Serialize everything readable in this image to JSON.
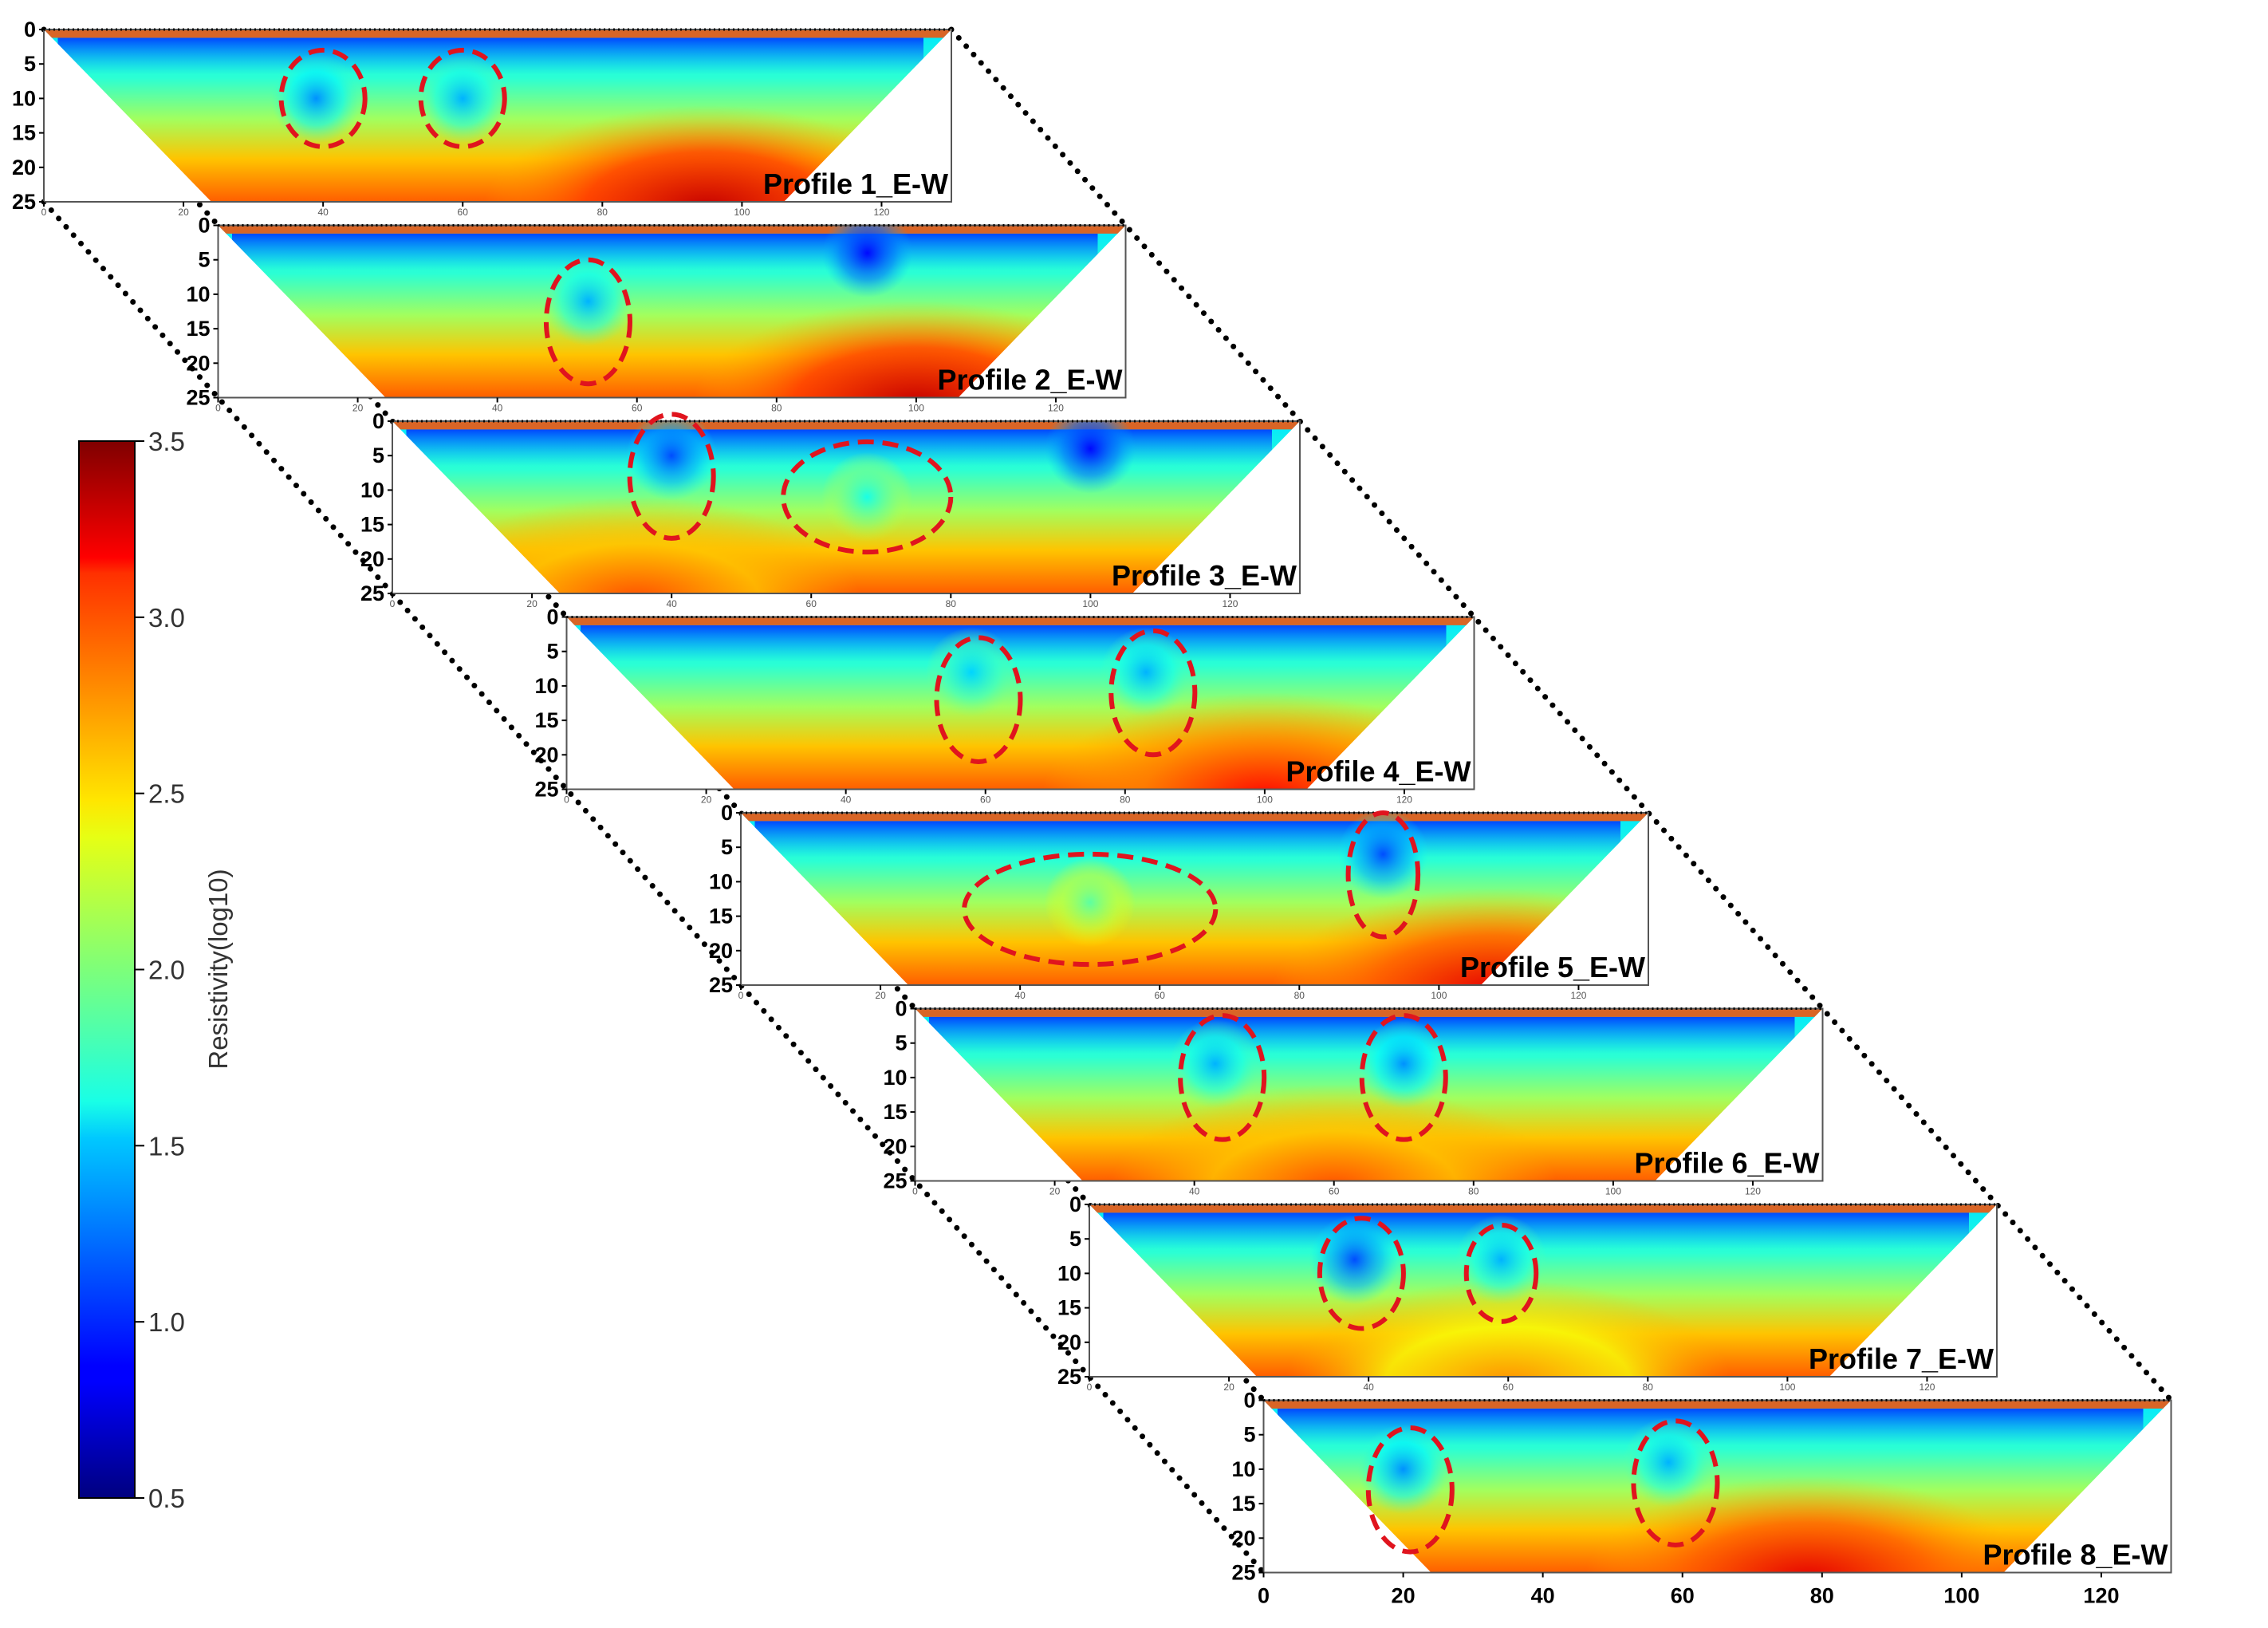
{
  "chart_data": {
    "type": "heatmap",
    "title": "",
    "colorbar": {
      "label": "Resistivity(log10)",
      "range": [
        0.5,
        3.5
      ],
      "ticks": [
        "0.5",
        "1.0",
        "1.5",
        "2.0",
        "2.5",
        "3.0",
        "3.5"
      ],
      "colormap": "jet"
    },
    "x_range": [
      0,
      130
    ],
    "y_range": [
      0,
      25
    ],
    "y_inverted": true,
    "y_ticks": [
      "0",
      "5",
      "10",
      "15",
      "20",
      "25"
    ],
    "x_ticks": [
      "0",
      "20",
      "40",
      "60",
      "80",
      "100",
      "120"
    ],
    "profiles": [
      {
        "name": "Profile 1_E-W",
        "deep_zone": {
          "x_center": 95,
          "value": 3.3
        },
        "low_zones": [
          {
            "x": 39,
            "y": 10,
            "value": 1.3
          },
          {
            "x": 60,
            "y": 10,
            "value": 1.4
          }
        ],
        "anomalies": [
          {
            "x_center": 40,
            "y_center": 10,
            "half_width": 6,
            "half_height": 7
          },
          {
            "x_center": 60,
            "y_center": 10,
            "half_width": 6,
            "half_height": 7
          }
        ]
      },
      {
        "name": "Profile 2_E-W",
        "deep_zone": {
          "x_center": 100,
          "value": 3.3
        },
        "low_zones": [
          {
            "x": 53,
            "y": 11,
            "value": 1.4
          },
          {
            "x": 93,
            "y": 4,
            "value": 0.9
          }
        ],
        "anomalies": [
          {
            "x_center": 53,
            "y_center": 14,
            "half_width": 6,
            "half_height": 9
          }
        ]
      },
      {
        "name": "Profile 3_E-W",
        "deep_zone": {
          "x_center": 35,
          "value": 2.9
        },
        "low_zones": [
          {
            "x": 40,
            "y": 5,
            "value": 1.1
          },
          {
            "x": 68,
            "y": 11,
            "value": 1.7
          },
          {
            "x": 100,
            "y": 4,
            "value": 0.9
          }
        ],
        "anomalies": [
          {
            "x_center": 40,
            "y_center": 8,
            "half_width": 6,
            "half_height": 9
          },
          {
            "x_center": 68,
            "y_center": 11,
            "half_width": 12,
            "half_height": 8
          }
        ]
      },
      {
        "name": "Profile 4_E-W",
        "deep_zone": {
          "x_center": 100,
          "value": 3.1
        },
        "low_zones": [
          {
            "x": 58,
            "y": 8,
            "value": 1.5
          },
          {
            "x": 83,
            "y": 8,
            "value": 1.4
          }
        ],
        "anomalies": [
          {
            "x_center": 59,
            "y_center": 12,
            "half_width": 6,
            "half_height": 9
          },
          {
            "x_center": 84,
            "y_center": 11,
            "half_width": 6,
            "half_height": 9
          }
        ]
      },
      {
        "name": "Profile 5_E-W",
        "deep_zone": {
          "x_center": 108,
          "value": 3.2
        },
        "low_zones": [
          {
            "x": 92,
            "y": 6,
            "value": 1.1
          },
          {
            "x": 50,
            "y": 13,
            "value": 1.9
          }
        ],
        "anomalies": [
          {
            "x_center": 50,
            "y_center": 14,
            "half_width": 18,
            "half_height": 8
          },
          {
            "x_center": 92,
            "y_center": 9,
            "half_width": 5,
            "half_height": 9
          }
        ]
      },
      {
        "name": "Profile 6_E-W",
        "deep_zone": {
          "x_center": 60,
          "value": 2.9
        },
        "low_zones": [
          {
            "x": 43,
            "y": 8,
            "value": 1.4
          },
          {
            "x": 70,
            "y": 8,
            "value": 1.3
          }
        ],
        "anomalies": [
          {
            "x_center": 44,
            "y_center": 10,
            "half_width": 6,
            "half_height": 9
          },
          {
            "x_center": 70,
            "y_center": 10,
            "half_width": 6,
            "half_height": 9
          }
        ]
      },
      {
        "name": "Profile 7_E-W",
        "deep_zone": {
          "x_center": 60,
          "value": 2.7
        },
        "low_zones": [
          {
            "x": 38,
            "y": 8,
            "value": 1.1
          },
          {
            "x": 59,
            "y": 8,
            "value": 1.4
          }
        ],
        "anomalies": [
          {
            "x_center": 39,
            "y_center": 10,
            "half_width": 6,
            "half_height": 8
          },
          {
            "x_center": 59,
            "y_center": 10,
            "half_width": 5,
            "half_height": 7
          }
        ]
      },
      {
        "name": "Profile 8_E-W",
        "deep_zone": {
          "x_center": 78,
          "value": 3.2
        },
        "low_zones": [
          {
            "x": 20,
            "y": 10,
            "value": 1.3
          },
          {
            "x": 58,
            "y": 9,
            "value": 1.4
          }
        ],
        "anomalies": [
          {
            "x_center": 21,
            "y_center": 13,
            "half_width": 6,
            "half_height": 9
          },
          {
            "x_center": 59,
            "y_center": 12,
            "half_width": 6,
            "half_height": 9
          }
        ]
      }
    ]
  }
}
